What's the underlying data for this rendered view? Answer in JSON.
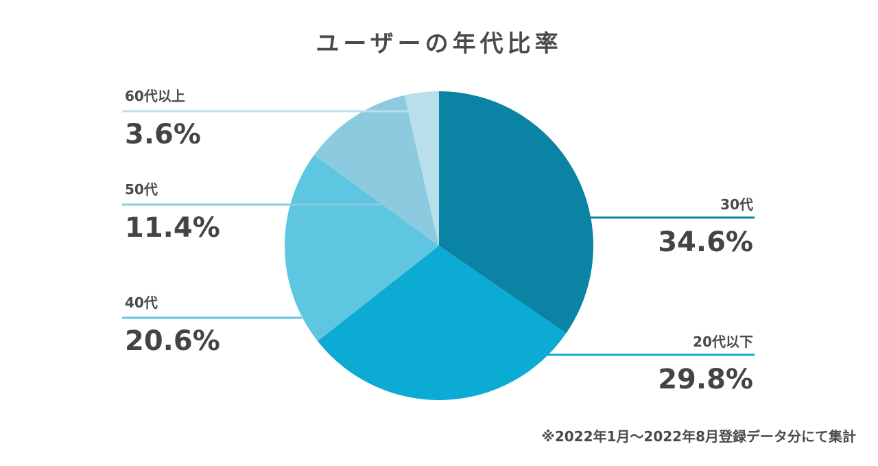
{
  "chart_data": {
    "type": "pie",
    "title": "ユーザーの年代比率",
    "categories": [
      "30代",
      "20代以下",
      "40代",
      "50代",
      "60代以上"
    ],
    "values": [
      34.6,
      29.8,
      20.6,
      11.4,
      3.6
    ],
    "value_labels": [
      "34.6%",
      "29.8%",
      "20.6%",
      "11.4%",
      "3.6%"
    ],
    "unit": "%",
    "colors": [
      "#0a83a4",
      "#0cabd3",
      "#5ec6e0",
      "#8ccbdf",
      "#b9e0ea"
    ],
    "start": "top",
    "direction": "clockwise",
    "legend": "none"
  },
  "footnote": "※2022年1月〜2022年8月登録データ分にて集計"
}
